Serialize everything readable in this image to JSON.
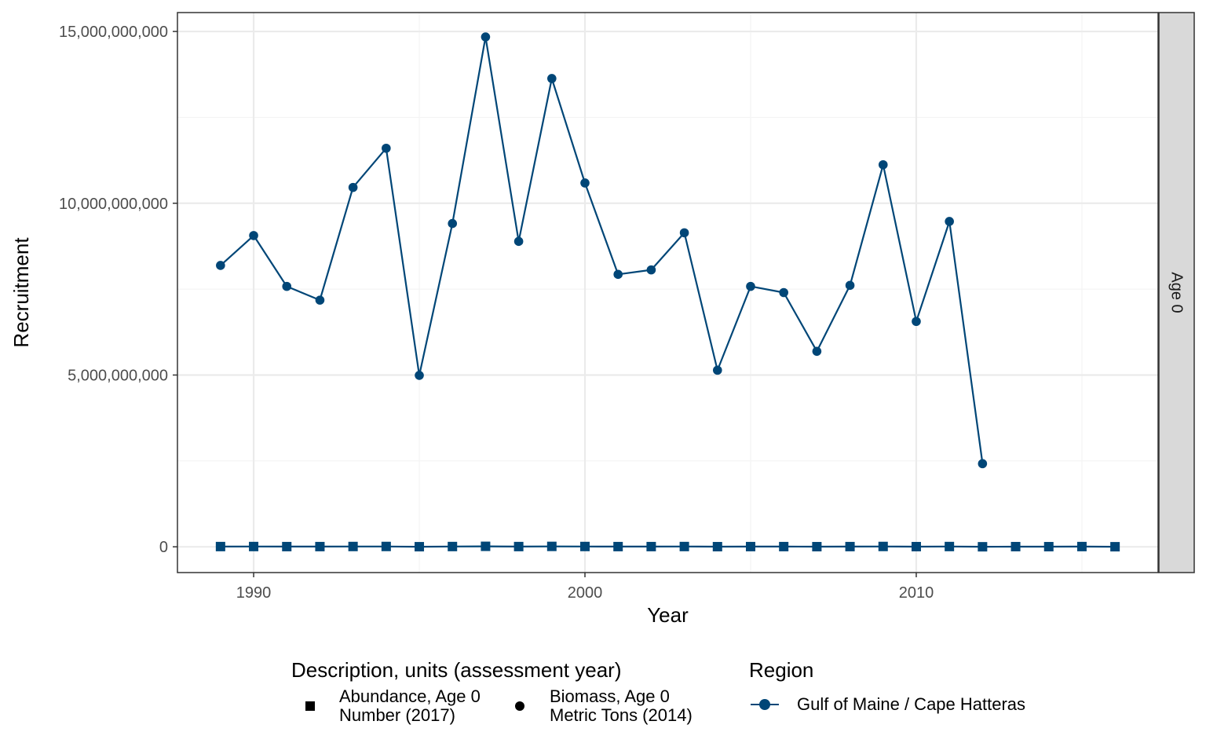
{
  "colors": {
    "series": "#004677",
    "grid_major": "#ebebeb",
    "grid_minor": "#f4f4f4",
    "panel_border": "#333333",
    "strip_fill": "#d9d9d9",
    "background": "#ffffff"
  },
  "chart_data": {
    "type": "line",
    "title": "",
    "xlabel": "Year",
    "ylabel": "Recruitment",
    "xlim": [
      1987.7,
      2017.3
    ],
    "ylim": [
      -750000000,
      15550000000
    ],
    "x_ticks": [
      1990,
      2000,
      2010
    ],
    "x_tick_labels": [
      "1990",
      "2000",
      "2010"
    ],
    "y_ticks": [
      0,
      5000000000,
      10000000000,
      15000000000
    ],
    "y_tick_labels": [
      "0",
      "5,000,000,000",
      "10,000,000,000",
      "15,000,000,000"
    ],
    "facet_label": "Age 0",
    "grid": true,
    "legend_position": "bottom",
    "series": [
      {
        "description": "Biomass, Age 0 Metric Tons (2014)",
        "region": "Gulf of Maine / Cape Hatteras",
        "marker": "circle",
        "x": [
          1989,
          1990,
          1991,
          1992,
          1993,
          1994,
          1995,
          1996,
          1997,
          1998,
          1999,
          2000,
          2001,
          2002,
          2003,
          2004,
          2005,
          2006,
          2007,
          2008,
          2009,
          2010,
          2011,
          2012
        ],
        "y": [
          8190000000,
          9060000000,
          7580000000,
          7180000000,
          10460000000,
          11600000000,
          4990000000,
          9410000000,
          14840000000,
          8890000000,
          13630000000,
          10590000000,
          7930000000,
          8060000000,
          9140000000,
          5140000000,
          7580000000,
          7400000000,
          5690000000,
          7610000000,
          11120000000,
          6560000000,
          9470000000,
          2420000000
        ]
      },
      {
        "description": "Abundance, Age 0 Number (2017)",
        "region": "Gulf of Maine / Cape Hatteras",
        "marker": "square",
        "x": [
          1989,
          1990,
          1991,
          1992,
          1993,
          1994,
          1995,
          1996,
          1997,
          1998,
          1999,
          2000,
          2001,
          2002,
          2003,
          2004,
          2005,
          2006,
          2007,
          2008,
          2009,
          2010,
          2011,
          2012,
          2013,
          2014,
          2015,
          2016
        ],
        "y": [
          7000000,
          8000000,
          6000000,
          6000000,
          9000000,
          10000000,
          3000000,
          8000000,
          14000000,
          7000000,
          12000000,
          9000000,
          6000000,
          6000000,
          8000000,
          4000000,
          6000000,
          6000000,
          4000000,
          6000000,
          10000000,
          5000000,
          8000000,
          1000000,
          5000000,
          4000000,
          7000000,
          2000000
        ]
      }
    ]
  },
  "legend": {
    "description_title": "Description, units (assessment year)",
    "description_items": [
      {
        "line1": "Abundance, Age 0",
        "line2": "Number (2017)",
        "marker": "square"
      },
      {
        "line1": "Biomass, Age 0",
        "line2": "Metric Tons (2014)",
        "marker": "circle"
      }
    ],
    "region_title": "Region",
    "region_items": [
      {
        "label": "Gulf of Maine / Cape Hatteras"
      }
    ]
  }
}
